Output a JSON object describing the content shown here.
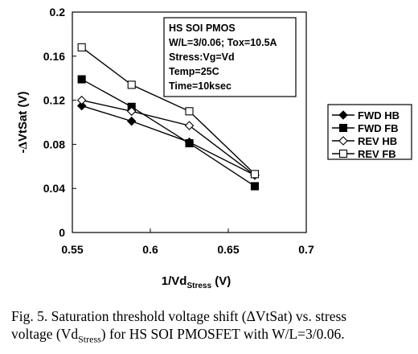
{
  "chart_data": {
    "type": "line",
    "ylabel_prefix": "-",
    "ylabel_delta": "Δ",
    "ylabel_main": "VtSat (V)",
    "xlabel_main": "1/Vd",
    "xlabel_sub": "Stress",
    "xlabel_unit": " (V)",
    "xlim": [
      0.55,
      0.7
    ],
    "ylim": [
      0,
      0.2
    ],
    "x_ticks": [
      0.55,
      0.6,
      0.65,
      0.7
    ],
    "x_tick_labels": [
      "0.55",
      "0.6",
      "0.65",
      "0.7"
    ],
    "y_ticks": [
      0,
      0.04,
      0.08,
      0.12,
      0.16,
      0.2
    ],
    "y_tick_labels": [
      "0",
      "0.04",
      "0.08",
      "0.12",
      "0.16",
      "0.2"
    ],
    "grid": false,
    "legend_position": "right",
    "annotation": [
      "HS SOI PMOS",
      "W/L=3/0.06; Tox=10.5A",
      "Stress:Vg=Vd",
      "Temp=25C",
      "Time=10ksec"
    ],
    "series": [
      {
        "name": "FWD HB",
        "marker": "diamond-filled",
        "x": [
          0.556,
          0.588,
          0.625,
          0.667
        ],
        "y": [
          0.115,
          0.101,
          0.082,
          0.052
        ]
      },
      {
        "name": "FWD FB",
        "marker": "square-filled",
        "x": [
          0.556,
          0.588,
          0.625,
          0.667
        ],
        "y": [
          0.139,
          0.114,
          0.081,
          0.042
        ]
      },
      {
        "name": "REV HB",
        "marker": "diamond-open",
        "x": [
          0.556,
          0.588,
          0.625,
          0.667
        ],
        "y": [
          0.12,
          0.11,
          0.097,
          0.052
        ]
      },
      {
        "name": "REV FB",
        "marker": "square-open",
        "x": [
          0.556,
          0.588,
          0.625,
          0.667
        ],
        "y": [
          0.168,
          0.134,
          0.11,
          0.053
        ]
      }
    ]
  },
  "caption": {
    "line1": "Fig. 5. Saturation threshold voltage shift (ΔVtSat) vs. stress",
    "line2_a": "voltage (Vd",
    "line2_sub": "Stress",
    "line2_b": ") for HS SOI PMOSFET with W/L=3/0.06."
  }
}
